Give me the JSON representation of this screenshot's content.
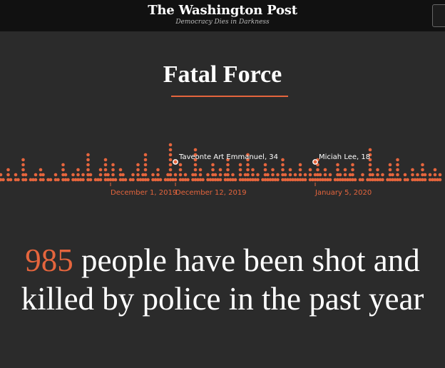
{
  "header": {
    "logo": "The Washington Post",
    "tagline": "Democracy Dies in Darkness"
  },
  "title": "Fatal Force",
  "chart_data": {
    "type": "scatter",
    "xlabel": "",
    "ylabel": "",
    "dot_color": "#e5653d",
    "columns": [
      2,
      1,
      0,
      3,
      1,
      0,
      2,
      1,
      0,
      5,
      2,
      0,
      1,
      1,
      2,
      0,
      3,
      2,
      0,
      1,
      1,
      0,
      2,
      1,
      0,
      4,
      2,
      1,
      0,
      2,
      1,
      3,
      1,
      2,
      0,
      6,
      2,
      0,
      1,
      1,
      3,
      0,
      5,
      2,
      1,
      4,
      1,
      0,
      3,
      2,
      1,
      0,
      1,
      2,
      0,
      4,
      1,
      2,
      6,
      1,
      0,
      2,
      1,
      3,
      1,
      0,
      1,
      2,
      8,
      1,
      2,
      0,
      4,
      1,
      2,
      1,
      0,
      2,
      7,
      1,
      3,
      1,
      0,
      2,
      1,
      4,
      2,
      1,
      3,
      0,
      2,
      5,
      1,
      2,
      1,
      0,
      4,
      1,
      2,
      6,
      1,
      3,
      1,
      2,
      0,
      1,
      4,
      2,
      1,
      3,
      1,
      2,
      0,
      5,
      2,
      1,
      3,
      1,
      2,
      1,
      4,
      1,
      2,
      0,
      3,
      1,
      2,
      5,
      2,
      1,
      3,
      1,
      2,
      0,
      1,
      4,
      2,
      1,
      3,
      1,
      2,
      4,
      1,
      0,
      1,
      2,
      0,
      1,
      7,
      2,
      1,
      3,
      1,
      2,
      0,
      1,
      4,
      2,
      1,
      5,
      1,
      0,
      2,
      1,
      0,
      3,
      1,
      2,
      1,
      4,
      2,
      0,
      2,
      1,
      3,
      1,
      2,
      0,
      1,
      2
    ],
    "tick_labels": [
      {
        "label": "December 1, 2019",
        "col": 44
      },
      {
        "label": "December 12, 2019",
        "col": 70
      },
      {
        "label": "January 5, 2020",
        "col": 126
      }
    ],
    "callouts": [
      {
        "label": "Taveonte Art Emmanuel, 34",
        "col": 70
      },
      {
        "label": "Miciah Lee, 18",
        "col": 126
      }
    ]
  },
  "headline": {
    "number": "985",
    "text": " people have been shot and killed by police in the past year"
  }
}
